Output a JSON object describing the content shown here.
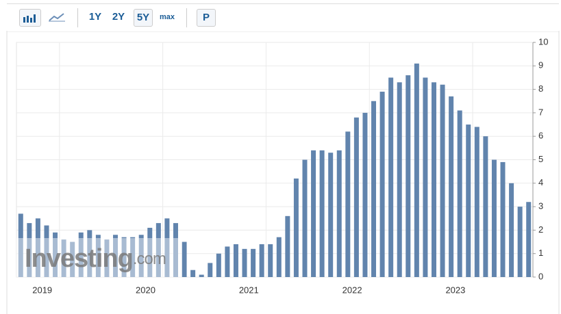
{
  "toolbar": {
    "ranges": [
      "1Y",
      "2Y",
      "5Y",
      "max"
    ],
    "p_button": "P"
  },
  "watermark": {
    "brand": "Investing",
    "suffix": ".com"
  },
  "chart_data": {
    "type": "bar",
    "color": "#6184ad",
    "categories": [
      null,
      null,
      null,
      null,
      null,
      "2019",
      null,
      null,
      null,
      null,
      null,
      null,
      null,
      null,
      null,
      null,
      null,
      "2020",
      null,
      null,
      null,
      null,
      null,
      null,
      null,
      null,
      null,
      null,
      null,
      "2021",
      null,
      null,
      null,
      null,
      null,
      null,
      null,
      null,
      null,
      null,
      null,
      "2022",
      null,
      null,
      null,
      null,
      null,
      null,
      null,
      null,
      null,
      null,
      null,
      "2023",
      null,
      null,
      null,
      null,
      null,
      null
    ],
    "values": [
      2.7,
      2.3,
      2.5,
      2.2,
      1.9,
      1.6,
      1.5,
      1.9,
      2.0,
      1.8,
      1.6,
      1.8,
      1.7,
      1.7,
      1.8,
      2.1,
      2.3,
      2.5,
      2.3,
      1.5,
      0.3,
      0.1,
      0.6,
      1.0,
      1.3,
      1.4,
      1.2,
      1.2,
      1.4,
      1.4,
      1.7,
      2.6,
      4.2,
      5.0,
      5.4,
      5.4,
      5.3,
      5.4,
      6.2,
      6.8,
      7.0,
      7.5,
      7.9,
      8.5,
      8.3,
      8.6,
      9.1,
      8.5,
      8.3,
      8.2,
      7.7,
      7.1,
      6.5,
      6.4,
      6.0,
      5.0,
      4.9,
      4.0,
      3.0,
      3.2
    ],
    "ylim": [
      0,
      10
    ],
    "yticks": [
      0,
      1,
      2,
      3,
      4,
      5,
      6,
      7,
      8,
      9,
      10
    ],
    "grid": true
  }
}
